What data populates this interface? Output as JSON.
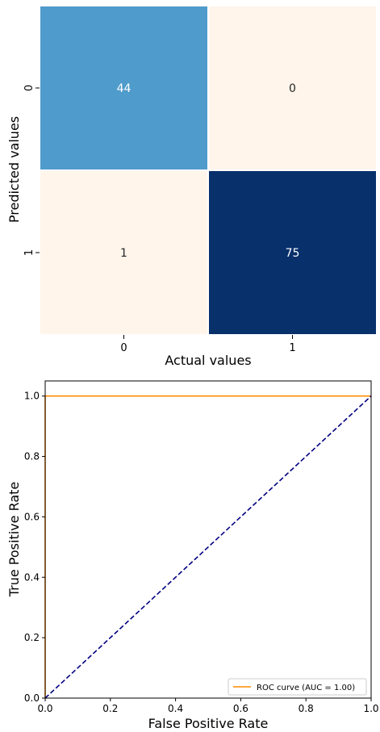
{
  "chart_data": [
    {
      "type": "heatmap",
      "xlabel": "Actual values",
      "ylabel": "Predicted values",
      "x_categories": [
        "0",
        "1"
      ],
      "y_categories": [
        "0",
        "1"
      ],
      "values": [
        [
          44,
          0
        ],
        [
          1,
          75
        ]
      ],
      "annotations": [
        [
          "44",
          "0"
        ],
        [
          "1",
          "75"
        ]
      ],
      "colormap": "Blues",
      "colors": {
        "cells": [
          [
            "#4f9bcb",
            "#fff5eb"
          ],
          [
            "#fff5eb",
            "#08306b"
          ]
        ],
        "annotation_text": [
          [
            "#ffffff",
            "#262626"
          ],
          [
            "#262626",
            "#ffffff"
          ]
        ]
      },
      "colorbar": false
    },
    {
      "type": "line",
      "xlabel": "False Positive Rate",
      "ylabel": "True Positive Rate",
      "xlim": [
        0.0,
        1.0
      ],
      "ylim": [
        0.0,
        1.05
      ],
      "xticks": [
        "0.0",
        "0.2",
        "0.4",
        "0.6",
        "0.8",
        "1.0"
      ],
      "yticks": [
        "0.0",
        "0.2",
        "0.4",
        "0.6",
        "0.8",
        "1.0"
      ],
      "grid": false,
      "legend_position": "lower right",
      "series": [
        {
          "name": "ROC curve (AUC = 1.00)",
          "color": "#ff8c00",
          "style": "solid",
          "x": [
            0.0,
            0.0,
            1.0
          ],
          "y": [
            0.0,
            1.0,
            1.0
          ]
        },
        {
          "color": "#000080",
          "style": "dashed",
          "x": [
            0.0,
            1.0
          ],
          "y": [
            0.0,
            1.0
          ]
        }
      ]
    }
  ]
}
